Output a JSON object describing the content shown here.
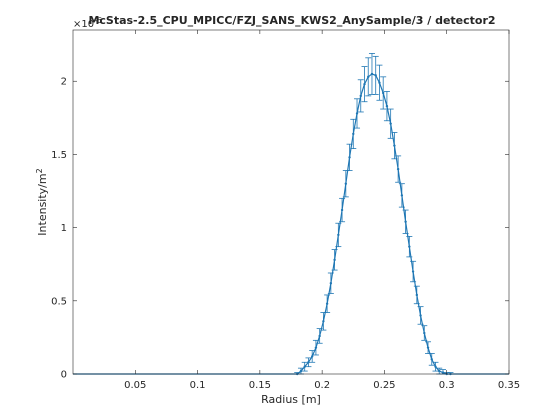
{
  "chart_data": {
    "type": "line",
    "title": "McStas-2.5_CPU_MPICC/FZJ_SANS_KWS2_AnySample/3 / detector2",
    "xlabel": "Radius [m]",
    "ylabel": "Intensity/m",
    "ylabel_exponent": "2",
    "y_multiplier_label": "×10",
    "y_multiplier_exponent": "-6",
    "xlim": [
      0,
      0.35
    ],
    "ylim": [
      0,
      2.35
    ],
    "xticks": [
      0.05,
      0.1,
      0.15,
      0.2,
      0.25,
      0.3,
      0.35
    ],
    "xtick_labels": [
      "0.05",
      "0.1",
      "0.15",
      "0.2",
      "0.25",
      "0.3",
      "0.35"
    ],
    "yticks": [
      0,
      0.5,
      1,
      1.5,
      2
    ],
    "ytick_labels": [
      "0",
      "0.5",
      "1",
      "1.5",
      "2"
    ],
    "grid": false,
    "colors": {
      "line": "#1f77b4",
      "axes": "#262626",
      "errorbar": "#1f77b4"
    },
    "series": [
      {
        "x": [
          0.18,
          0.183,
          0.186,
          0.189,
          0.192,
          0.195,
          0.198,
          0.201,
          0.204,
          0.207,
          0.21,
          0.213,
          0.216,
          0.219,
          0.222,
          0.225,
          0.228,
          0.231,
          0.234,
          0.237,
          0.24,
          0.243,
          0.246,
          0.249,
          0.252,
          0.255,
          0.258,
          0.261,
          0.264,
          0.267,
          0.27,
          0.273,
          0.276,
          0.279,
          0.282,
          0.285,
          0.288,
          0.291,
          0.294,
          0.297,
          0.3,
          0.303
        ],
        "values": [
          0.0,
          0.02,
          0.05,
          0.08,
          0.12,
          0.18,
          0.26,
          0.36,
          0.48,
          0.62,
          0.78,
          0.95,
          1.12,
          1.3,
          1.48,
          1.64,
          1.78,
          1.9,
          1.98,
          2.03,
          2.05,
          2.04,
          1.99,
          1.92,
          1.83,
          1.71,
          1.56,
          1.4,
          1.22,
          1.04,
          0.87,
          0.7,
          0.54,
          0.4,
          0.28,
          0.18,
          0.1,
          0.05,
          0.02,
          0.01,
          0.0,
          0.0
        ],
        "errors": [
          0.01,
          0.02,
          0.03,
          0.03,
          0.04,
          0.05,
          0.05,
          0.06,
          0.06,
          0.07,
          0.07,
          0.08,
          0.08,
          0.09,
          0.09,
          0.1,
          0.1,
          0.11,
          0.12,
          0.13,
          0.14,
          0.13,
          0.12,
          0.11,
          0.1,
          0.1,
          0.09,
          0.09,
          0.08,
          0.08,
          0.07,
          0.07,
          0.06,
          0.06,
          0.05,
          0.04,
          0.04,
          0.03,
          0.02,
          0.02,
          0.01,
          0.01
        ]
      }
    ]
  }
}
